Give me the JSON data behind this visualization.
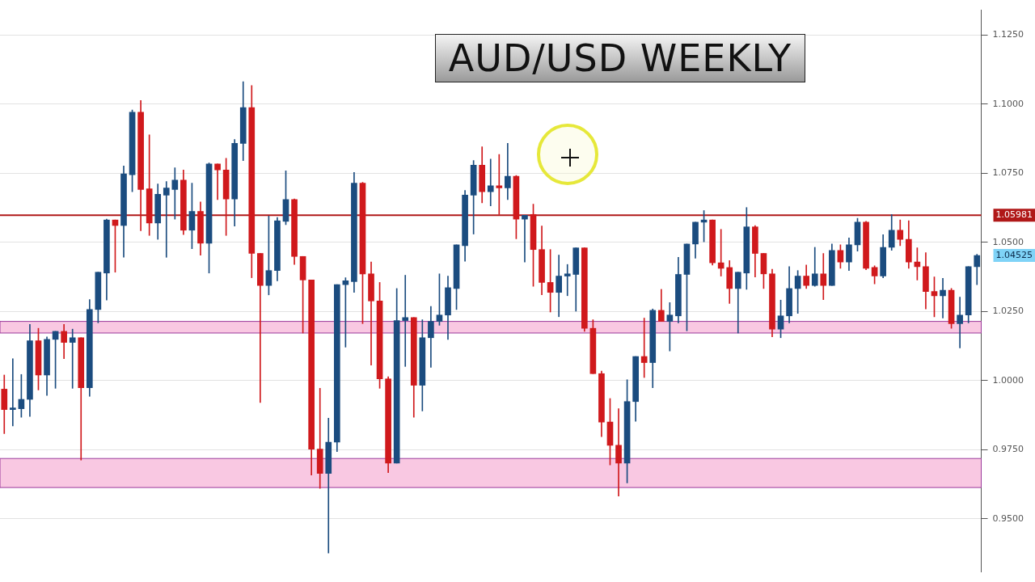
{
  "chart_data": {
    "type": "candlestick",
    "title": "AUD/USD WEEKLY",
    "categories": [
      null,
      null,
      null,
      null,
      null,
      null,
      null,
      null,
      null,
      null,
      null,
      null,
      null,
      null,
      null,
      null,
      null,
      null,
      null,
      null,
      null,
      null,
      null,
      null,
      null,
      null,
      null,
      null,
      null,
      null,
      null,
      null,
      null,
      null,
      null,
      null,
      null,
      null,
      null,
      null,
      null,
      null,
      null,
      null,
      null,
      null,
      null,
      null,
      null,
      null,
      null,
      null,
      null,
      null,
      null,
      null,
      null,
      null,
      null,
      null,
      null,
      null,
      null,
      null,
      null,
      null,
      null,
      null,
      null,
      null,
      null,
      null,
      null,
      null,
      null,
      null,
      null,
      null,
      null,
      null,
      null,
      null,
      null,
      null,
      null,
      null,
      null,
      null,
      null,
      null,
      null,
      null,
      null,
      null,
      null,
      null,
      null,
      null,
      null,
      null,
      null,
      null,
      null,
      null,
      null,
      null,
      null,
      null,
      null,
      null,
      null,
      null,
      null,
      null,
      null
    ],
    "ohlc": [
      [
        0.9969,
        1.002,
        0.9808,
        0.9895
      ],
      [
        0.9895,
        1.0079,
        0.9836,
        0.9901
      ],
      [
        0.9898,
        1.0022,
        0.9867,
        0.9932
      ],
      [
        0.9932,
        1.0203,
        0.987,
        1.0144
      ],
      [
        1.0144,
        1.0189,
        0.9966,
        1.002
      ],
      [
        1.002,
        1.0158,
        0.9946,
        1.0149
      ],
      [
        1.0149,
        1.0178,
        0.9972,
        1.0178
      ],
      [
        1.0178,
        1.0203,
        1.0079,
        1.0138
      ],
      [
        1.0138,
        1.0186,
        0.9972,
        1.0155
      ],
      [
        1.0155,
        1.0155,
        0.9712,
        0.9974
      ],
      [
        0.9974,
        1.0293,
        0.9943,
        1.0257
      ],
      [
        1.0257,
        1.0392,
        1.0209,
        1.0392
      ],
      [
        1.0389,
        1.0584,
        1.0291,
        1.0581
      ],
      [
        1.0581,
        1.0581,
        1.0392,
        1.0561
      ],
      [
        1.0561,
        1.0776,
        1.0446,
        1.0748
      ],
      [
        1.0745,
        1.0979,
        1.0683,
        1.0971
      ],
      [
        1.0971,
        1.1013,
        1.0542,
        1.0691
      ],
      [
        1.0694,
        1.0889,
        1.0525,
        1.057
      ],
      [
        1.057,
        1.0711,
        1.0511,
        1.0674
      ],
      [
        1.0671,
        1.072,
        1.0446,
        1.0697
      ],
      [
        1.0691,
        1.077,
        1.0584,
        1.0725
      ],
      [
        1.0725,
        1.0762,
        1.0528,
        1.0544
      ],
      [
        1.0544,
        1.0714,
        1.0477,
        1.0612
      ],
      [
        1.0612,
        1.0646,
        1.0454,
        1.0497
      ],
      [
        1.0497,
        1.0787,
        1.0389,
        1.0784
      ],
      [
        1.0784,
        1.0784,
        1.0655,
        1.0762
      ],
      [
        1.0762,
        1.0804,
        1.0525,
        1.0657
      ],
      [
        1.0657,
        1.0872,
        1.0559,
        1.0858
      ],
      [
        1.0858,
        1.1081,
        1.0796,
        1.0988
      ],
      [
        1.0988,
        1.1067,
        1.0372,
        1.046
      ],
      [
        1.046,
        1.046,
        0.9921,
        1.0344
      ],
      [
        1.0344,
        1.0595,
        1.031,
        1.0398
      ],
      [
        1.0398,
        1.059,
        1.0361,
        1.0578
      ],
      [
        1.0576,
        1.0759,
        1.0564,
        1.0655
      ],
      [
        1.0655,
        1.0657,
        1.042,
        1.0449
      ],
      [
        1.0449,
        1.0449,
        1.0172,
        1.0364
      ],
      [
        1.0364,
        1.0364,
        0.9658,
        0.9752
      ],
      [
        0.9752,
        0.9972,
        0.961,
        0.9664
      ],
      [
        0.9664,
        0.9864,
        0.9376,
        0.9777
      ],
      [
        0.9777,
        1.0347,
        0.9743,
        1.0347
      ],
      [
        1.0347,
        1.0372,
        1.0121,
        1.0361
      ],
      [
        1.0358,
        1.0753,
        1.0319,
        1.0714
      ],
      [
        1.0714,
        1.0717,
        1.0206,
        1.0386
      ],
      [
        1.0386,
        1.0429,
        1.0056,
        1.0288
      ],
      [
        1.0288,
        1.0355,
        0.9972,
        1.0006
      ],
      [
        1.0006,
        1.0014,
        0.9667,
        0.9701
      ],
      [
        0.9701,
        1.0333,
        0.9701,
        1.0217
      ],
      [
        1.0217,
        1.0381,
        1.0051,
        1.0228
      ],
      [
        1.0228,
        1.0228,
        0.9867,
        0.9983
      ],
      [
        0.9983,
        1.022,
        0.989,
        1.0155
      ],
      [
        1.0155,
        1.0268,
        1.0048,
        1.0214
      ],
      [
        1.0214,
        1.0386,
        1.02,
        1.0237
      ],
      [
        1.0237,
        1.0378,
        1.0149,
        1.0336
      ],
      [
        1.0333,
        1.0491,
        1.0257,
        1.0491
      ],
      [
        1.0488,
        1.0688,
        1.0432,
        1.0671
      ],
      [
        1.0671,
        1.0796,
        1.053,
        1.0779
      ],
      [
        1.0779,
        1.0846,
        1.0643,
        1.0683
      ],
      [
        1.0683,
        1.0801,
        1.0632,
        1.0705
      ],
      [
        1.0705,
        1.0818,
        1.0601,
        1.0697
      ],
      [
        1.0697,
        1.0858,
        1.0655,
        1.0739
      ],
      [
        1.0739,
        1.0742,
        1.0513,
        1.0584
      ],
      [
        1.0584,
        1.0598,
        1.0429,
        1.0598
      ],
      [
        1.0601,
        1.0638,
        1.0341,
        1.0474
      ],
      [
        1.0474,
        1.0559,
        1.031,
        1.0355
      ],
      [
        1.0355,
        1.0474,
        1.0248,
        1.0319
      ],
      [
        1.0319,
        1.0454,
        1.0231,
        1.0378
      ],
      [
        1.0378,
        1.042,
        1.0307,
        1.0386
      ],
      [
        1.0384,
        1.048,
        1.0251,
        1.048
      ],
      [
        1.048,
        1.048,
        1.0178,
        1.0189
      ],
      [
        1.0189,
        1.022,
        1.0025,
        1.0025
      ],
      [
        1.0025,
        1.0034,
        0.9797,
        0.985
      ],
      [
        0.985,
        0.9935,
        0.9695,
        0.9766
      ],
      [
        0.9766,
        0.9898,
        0.9582,
        0.9701
      ],
      [
        0.9701,
        1.0003,
        0.963,
        0.9924
      ],
      [
        0.9924,
        1.0087,
        0.9853,
        1.0087
      ],
      [
        1.0087,
        1.0226,
        1.0011,
        1.0065
      ],
      [
        1.0065,
        1.0259,
        0.9974,
        1.0254
      ],
      [
        1.0254,
        1.033,
        1.0214,
        1.0214
      ],
      [
        1.0214,
        1.0282,
        1.0107,
        1.0237
      ],
      [
        1.0234,
        1.0446,
        1.0209,
        1.0384
      ],
      [
        1.0384,
        1.0494,
        1.018,
        1.0494
      ],
      [
        1.0494,
        1.0573,
        1.0443,
        1.0573
      ],
      [
        1.0573,
        1.0615,
        1.0502,
        1.0581
      ],
      [
        1.0581,
        1.0581,
        1.0418,
        1.0426
      ],
      [
        1.0426,
        1.0547,
        1.0378,
        1.0406
      ],
      [
        1.0409,
        1.0434,
        1.0279,
        1.0333
      ],
      [
        1.0333,
        1.0392,
        1.0172,
        1.0392
      ],
      [
        1.0389,
        1.0626,
        1.033,
        1.0556
      ],
      [
        1.0556,
        1.0561,
        1.0375,
        1.046
      ],
      [
        1.046,
        1.046,
        1.0333,
        1.0386
      ],
      [
        1.0386,
        1.0403,
        1.0158,
        1.0186
      ],
      [
        1.0186,
        1.0291,
        1.0155,
        1.0234
      ],
      [
        1.0234,
        1.0412,
        1.0209,
        1.0333
      ],
      [
        1.0333,
        1.0398,
        1.0243,
        1.0378
      ],
      [
        1.0378,
        1.0418,
        1.0333,
        1.0344
      ],
      [
        1.0344,
        1.0482,
        1.0341,
        1.0386
      ],
      [
        1.0386,
        1.046,
        1.0293,
        1.0344
      ],
      [
        1.0344,
        1.0494,
        1.0344,
        1.0471
      ],
      [
        1.0471,
        1.0491,
        1.0406,
        1.0429
      ],
      [
        1.0429,
        1.0516,
        1.0398,
        1.0491
      ],
      [
        1.0491,
        1.0587,
        1.0468,
        1.0573
      ],
      [
        1.0573,
        1.0576,
        1.0401,
        1.0406
      ],
      [
        1.0409,
        1.0415,
        1.035,
        1.0378
      ],
      [
        1.0378,
        1.0528,
        1.0372,
        1.0482
      ],
      [
        1.0482,
        1.0601,
        1.0471,
        1.0544
      ],
      [
        1.0544,
        1.0581,
        1.0488,
        1.0511
      ],
      [
        1.0511,
        1.0578,
        1.0406,
        1.0429
      ],
      [
        1.0429,
        1.048,
        1.0364,
        1.0412
      ],
      [
        1.0412,
        1.0463,
        1.0259,
        1.0322
      ],
      [
        1.0322,
        1.0375,
        1.0231,
        1.0307
      ],
      [
        1.0307,
        1.037,
        1.0226,
        1.0327
      ],
      [
        1.0327,
        1.0333,
        1.0189,
        1.0206
      ],
      [
        1.0206,
        1.0302,
        1.0118,
        1.0237
      ],
      [
        1.0237,
        1.0412,
        1.0209,
        1.0412
      ],
      [
        1.0412,
        1.0457,
        1.0347,
        1.04525
      ]
    ],
    "colors": [
      "#d0191c",
      "#1b4c7f",
      "#1b4c7f",
      "#1b4c7f",
      "#d0191c",
      "#1b4c7f",
      "#1b4c7f",
      "#d0191c",
      "#1b4c7f",
      "#d0191c",
      "#1b4c7f",
      "#1b4c7f",
      "#1b4c7f",
      "#d0191c",
      "#1b4c7f",
      "#1b4c7f",
      "#d0191c",
      "#d0191c",
      "#1b4c7f",
      "#1b4c7f",
      "#1b4c7f",
      "#d0191c",
      "#1b4c7f",
      "#d0191c",
      "#1b4c7f",
      "#d0191c",
      "#d0191c",
      "#1b4c7f",
      "#1b4c7f",
      "#d0191c",
      "#d0191c",
      "#1b4c7f",
      "#1b4c7f",
      "#1b4c7f",
      "#d0191c",
      "#d0191c",
      "#d0191c",
      "#d0191c",
      "#1b4c7f",
      "#1b4c7f",
      "#1b4c7f",
      "#1b4c7f",
      "#d0191c",
      "#d0191c",
      "#d0191c",
      "#d0191c",
      "#1b4c7f",
      "#1b4c7f",
      "#d0191c",
      "#1b4c7f",
      "#1b4c7f",
      "#1b4c7f",
      "#1b4c7f",
      "#1b4c7f",
      "#1b4c7f",
      "#1b4c7f",
      "#d0191c",
      "#1b4c7f",
      "#d0191c",
      "#1b4c7f",
      "#d0191c",
      "#1b4c7f",
      "#d0191c",
      "#d0191c",
      "#d0191c",
      "#1b4c7f",
      "#1b4c7f",
      "#1b4c7f",
      "#d0191c",
      "#d0191c",
      "#d0191c",
      "#d0191c",
      "#d0191c",
      "#1b4c7f",
      "#1b4c7f",
      "#d0191c",
      "#1b4c7f",
      "#d0191c",
      "#1b4c7f",
      "#1b4c7f",
      "#1b4c7f",
      "#1b4c7f",
      "#1b4c7f",
      "#d0191c",
      "#d0191c",
      "#d0191c",
      "#1b4c7f",
      "#1b4c7f",
      "#d0191c",
      "#d0191c",
      "#d0191c",
      "#1b4c7f",
      "#1b4c7f",
      "#1b4c7f",
      "#d0191c",
      "#1b4c7f",
      "#d0191c",
      "#1b4c7f",
      "#d0191c",
      "#1b4c7f",
      "#1b4c7f",
      "#d0191c",
      "#d0191c",
      "#1b4c7f",
      "#1b4c7f",
      "#d0191c",
      "#d0191c",
      "#d0191c",
      "#d0191c",
      "#d0191c",
      "#1b4c7f",
      "#d0191c",
      "#1b4c7f",
      "#1b4c7f",
      "#1b4c7f"
    ],
    "ylim": [
      0.9308,
      1.134
    ],
    "yticks": [
      {
        "value": 0.95,
        "label": "0.9500"
      },
      {
        "value": 0.975,
        "label": "0.9750"
      },
      {
        "value": 1.0,
        "label": "1.0000"
      },
      {
        "value": 1.025,
        "label": "1.0250"
      },
      {
        "value": 1.05,
        "label": "1.0500"
      },
      {
        "value": 1.075,
        "label": "1.0750"
      },
      {
        "value": 1.1,
        "label": "1.1000"
      },
      {
        "value": 1.125,
        "label": "1.1250"
      }
    ],
    "grid": "y",
    "ref_lines": [
      {
        "axis": "y",
        "value": 1.05981,
        "label": "1.05981",
        "color": "#b01818"
      }
    ],
    "bands": [
      {
        "axis": "y",
        "from": 0.9613,
        "to": 0.9718,
        "color": "#f9c8e2"
      },
      {
        "axis": "y",
        "from": 1.0172,
        "to": 1.0214,
        "color": "#f9c8e2"
      }
    ],
    "annotations": [
      "1.04525"
    ],
    "tick_labels": "y"
  }
}
